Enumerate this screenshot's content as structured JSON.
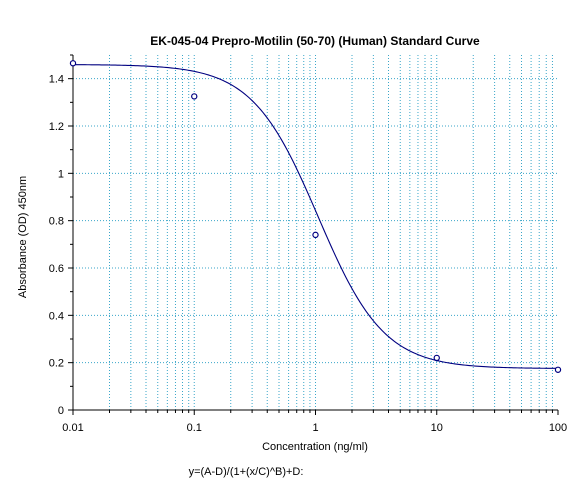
{
  "chart_data": {
    "type": "scatter",
    "title": "EK-045-04 Prepro-Motilin (50-70) (Human) Standard Curve",
    "xlabel": "Concentration (ng/ml)",
    "ylabel": "Absorbance (OD) 450nm",
    "xscale": "log",
    "xlim": [
      0.01,
      100
    ],
    "ylim": [
      0,
      1.5
    ],
    "x_ticks": [
      "0.01",
      "0.1",
      "1",
      "10",
      "100"
    ],
    "y_ticks": [
      "0",
      "0.2",
      "0.4",
      "0.6",
      "0.8",
      "1",
      "1.2",
      "1.4"
    ],
    "grid": true,
    "points": [
      {
        "x": 0.01,
        "y": 1.465
      },
      {
        "x": 0.1,
        "y": 1.325
      },
      {
        "x": 1,
        "y": 0.74
      },
      {
        "x": 10,
        "y": 0.22
      },
      {
        "x": 100,
        "y": 0.17
      }
    ],
    "fit": {
      "model": "4PL",
      "A": 1.46,
      "B": 1.6,
      "C": 1.05,
      "D": 0.175
    },
    "formula": "y=(A-D)/(1+(x/C)^B)+D:",
    "colors": {
      "curve": "#000080",
      "marker": "#000080",
      "grid": "#3aa6c9",
      "axis": "#000000"
    }
  }
}
